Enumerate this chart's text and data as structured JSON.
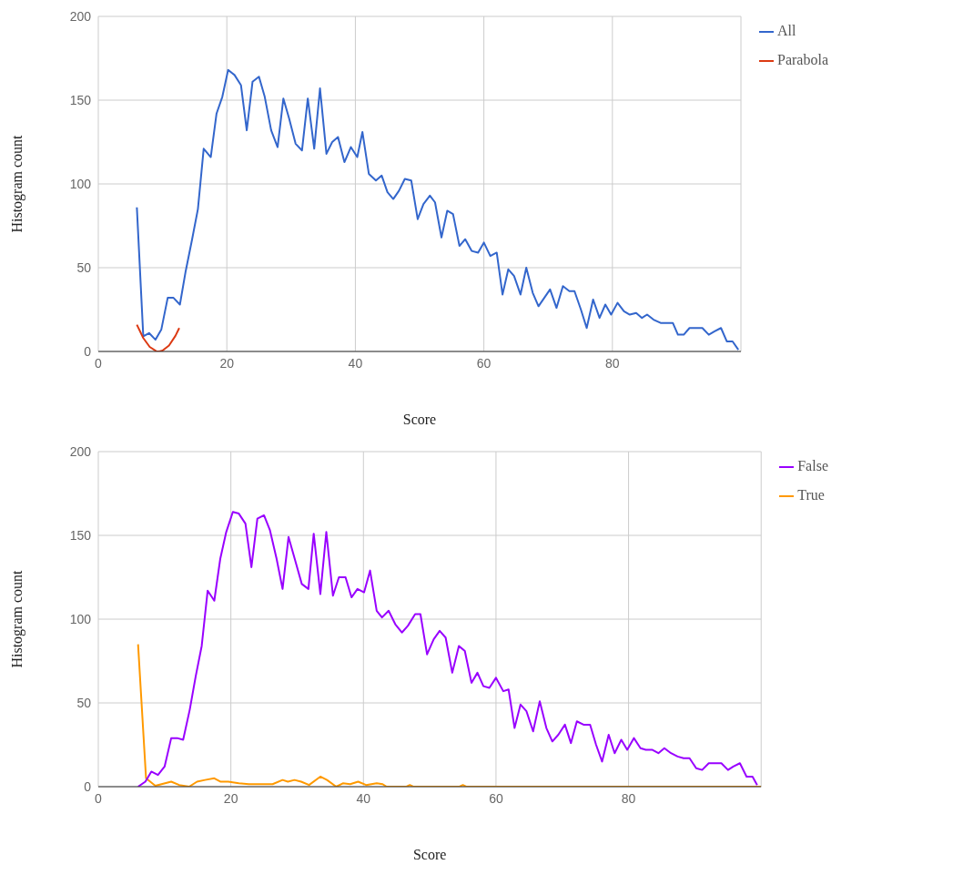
{
  "chart_data": [
    {
      "type": "line",
      "xlabel": "Score",
      "ylabel": "Histogram count",
      "xlim": [
        0,
        100
      ],
      "xticks": [
        0,
        20,
        40,
        60,
        80
      ],
      "ylim": [
        0,
        200
      ],
      "yticks": [
        0,
        50,
        100,
        150,
        200
      ],
      "grid": true,
      "legend": "top right",
      "marker": "none",
      "line_style": "solid",
      "series": [
        {
          "name": "All",
          "color": "#3366cc",
          "x": [
            6,
            7,
            7.9,
            8.9,
            9.8,
            10.8,
            11.7,
            12.7,
            13.6,
            14.6,
            15.5,
            16.4,
            17.5,
            18.4,
            19.3,
            20.2,
            21.2,
            22.2,
            23.1,
            24,
            25,
            25.9,
            26.9,
            27.9,
            28.8,
            29.7,
            30.7,
            31.7,
            32.6,
            33.6,
            34.5,
            35.5,
            36.4,
            37.3,
            38.3,
            39.3,
            40.3,
            41.1,
            42.1,
            43.2,
            44.1,
            45,
            45.9,
            46.8,
            47.7,
            48.7,
            49.7,
            50.6,
            51.6,
            52.4,
            53.4,
            54.3,
            55.2,
            56.2,
            57.1,
            58.1,
            59.1,
            60,
            61,
            62,
            62.9,
            63.8,
            64.7,
            65.7,
            66.6,
            67.6,
            68.5,
            69.4,
            70.3,
            71.3,
            72.3,
            73.3,
            74.1,
            75.1,
            76,
            77,
            78,
            78.9,
            79.8,
            80.8,
            81.8,
            82.7,
            83.7,
            84.6,
            85.4,
            86.4,
            87.5,
            88.5,
            89.4,
            90.2,
            91.1,
            92,
            93.1,
            94,
            95,
            95.9,
            96.9,
            97.8,
            98.7,
            99.6
          ],
          "values": [
            86,
            9,
            11,
            7,
            13,
            32,
            32,
            28,
            48,
            67,
            85,
            121,
            116,
            142,
            152,
            168,
            165,
            159,
            132,
            161,
            164,
            152,
            132,
            122,
            151,
            139,
            124,
            120,
            151,
            121,
            157,
            118,
            125,
            128,
            113,
            122,
            116,
            131,
            106,
            102,
            105,
            95,
            91,
            96,
            103,
            102,
            79,
            88,
            93,
            89,
            68,
            84,
            82,
            63,
            67,
            60,
            59,
            65,
            57,
            59,
            34,
            49,
            45,
            34,
            50,
            35,
            27,
            32,
            37,
            26,
            39,
            36,
            36,
            25,
            14,
            31,
            20,
            28,
            22,
            29,
            24,
            22,
            23,
            20,
            22,
            19,
            17,
            17,
            17,
            10,
            10,
            14,
            14,
            14,
            10,
            12,
            14,
            6,
            6,
            1
          ]
        },
        {
          "name": "Parabola",
          "color": "#dc3912",
          "x": [
            6,
            7,
            8,
            9,
            9.5,
            10,
            11,
            12,
            12.6
          ],
          "values": [
            16,
            8,
            2.7,
            0.2,
            0,
            0.5,
            3.5,
            9.3,
            14
          ]
        }
      ]
    },
    {
      "type": "line",
      "xlabel": "Score",
      "ylabel": "Histogram count",
      "xlim": [
        0,
        100
      ],
      "xticks": [
        0,
        20,
        40,
        60,
        80
      ],
      "ylim": [
        0,
        200
      ],
      "yticks": [
        0,
        50,
        100,
        150,
        200
      ],
      "grid": true,
      "legend": "top right",
      "marker": "none",
      "line_style": "solid",
      "series": [
        {
          "name": "True",
          "color": "#ff9900",
          "x": [
            6,
            7.2,
            8.6,
            11,
            12.2,
            13.7,
            14.9,
            16.1,
            17.5,
            18.4,
            19.6,
            21.2,
            22.7,
            24.3,
            26.3,
            27.8,
            28.6,
            29.6,
            30.6,
            31.8,
            33.5,
            34.5,
            35.9,
            36.9,
            38,
            39.2,
            40.4,
            42,
            42.9,
            43.5,
            46.5,
            47,
            47.5,
            54.5,
            55,
            55.5,
            100
          ],
          "values": [
            85,
            5,
            0.5,
            3,
            1,
            0,
            3,
            4,
            5,
            3,
            3,
            2,
            1.5,
            1.5,
            1.5,
            4,
            3,
            4,
            3,
            1,
            6,
            4,
            0,
            2,
            1.5,
            3,
            1,
            2,
            1.5,
            0,
            0,
            1,
            0,
            0,
            1,
            0,
            0
          ]
        },
        {
          "name": "False",
          "color": "#9900ff",
          "x": [
            6,
            7.1,
            8,
            9,
            10,
            11,
            11.9,
            12.8,
            13.8,
            14.7,
            15.6,
            16.5,
            17.5,
            18.4,
            19.3,
            20.3,
            21.2,
            22.2,
            23.1,
            24,
            25,
            25.9,
            26.9,
            27.8,
            28.7,
            29.7,
            30.7,
            31.7,
            32.5,
            33.5,
            34.4,
            35.4,
            36.3,
            37.3,
            38.2,
            39.1,
            40.1,
            41,
            42,
            42.8,
            43.8,
            44.8,
            45.8,
            46.7,
            47.8,
            48.6,
            49.6,
            50.6,
            51.5,
            52.4,
            53.4,
            54.4,
            55.3,
            56.3,
            57.2,
            58.1,
            59,
            60,
            61.1,
            61.9,
            62.8,
            63.7,
            64.6,
            65.6,
            66.6,
            67.6,
            68.5,
            69.4,
            70.4,
            71.3,
            72.2,
            73.2,
            74.2,
            75.1,
            76,
            77,
            77.9,
            78.9,
            79.8,
            80.8,
            81.8,
            82.6,
            83.6,
            84.5,
            85.4,
            86.4,
            87.4,
            88.3,
            89.2,
            90.2,
            91.1,
            92.1,
            93.1,
            94,
            95,
            95.8,
            96.8,
            97.8,
            98.7,
            99.4
          ],
          "values": [
            0,
            3,
            9,
            7,
            12,
            29,
            29,
            28,
            46,
            66,
            84,
            117,
            111,
            136,
            152,
            164,
            163,
            157,
            131,
            160,
            162,
            153,
            136,
            118,
            149,
            135,
            121,
            118,
            151,
            115,
            152,
            114,
            125,
            125,
            113,
            118,
            116,
            129,
            105,
            101,
            105,
            97,
            92,
            96,
            103,
            103,
            79,
            88,
            93,
            89,
            68,
            84,
            81,
            62,
            68,
            60,
            59,
            65,
            57,
            58,
            35,
            49,
            45,
            33,
            51,
            35,
            27,
            31,
            37,
            26,
            39,
            37,
            37,
            25,
            15,
            31,
            20,
            28,
            22,
            29,
            23,
            22,
            22,
            20,
            23,
            20,
            18,
            17,
            17,
            11,
            10,
            14,
            14,
            14,
            10,
            12,
            14,
            6,
            6,
            1
          ]
        }
      ]
    }
  ]
}
